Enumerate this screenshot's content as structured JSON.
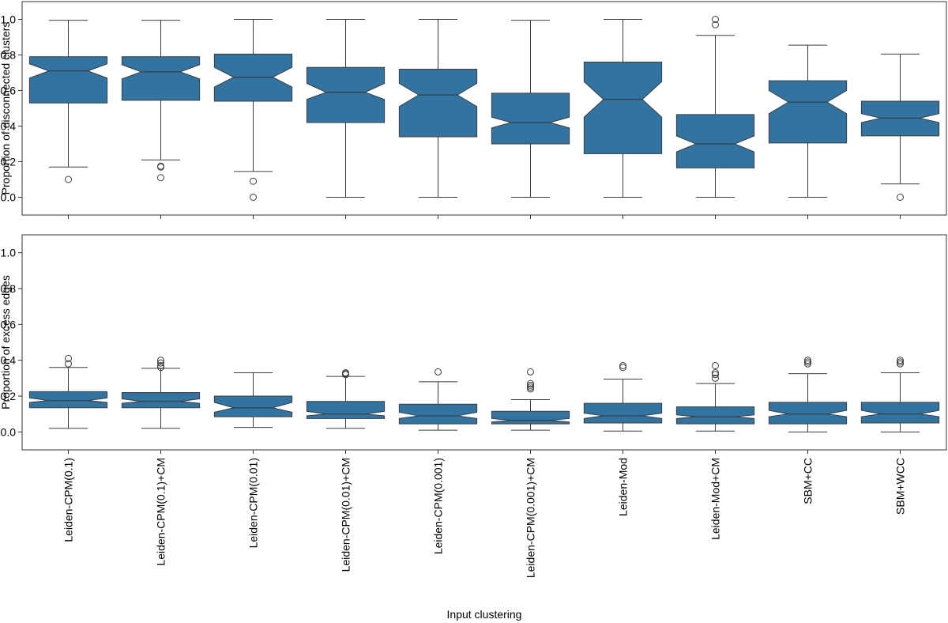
{
  "chart_data": [
    {
      "type": "box",
      "y_label": "Proportion of disconnected clusters",
      "color": "#3274a1",
      "ylim": [
        -0.1,
        1.1
      ],
      "yticks": [
        {
          "value": 0,
          "label": "0.0"
        },
        0.2,
        0.4,
        0.6,
        0.8,
        {
          "value": 1,
          "label": "1.0"
        }
      ],
      "boxes": [
        {
          "min": 0.17,
          "q1": 0.53,
          "median": 0.71,
          "q3": 0.79,
          "max": 0.995,
          "notch": [
            0.67,
            0.75
          ],
          "outliers": [
            0.1
          ]
        },
        {
          "min": 0.21,
          "q1": 0.545,
          "median": 0.705,
          "q3": 0.79,
          "max": 0.995,
          "notch": [
            0.665,
            0.745
          ],
          "outliers": [
            0.17,
            0.175,
            0.11
          ]
        },
        {
          "min": 0.145,
          "q1": 0.54,
          "median": 0.675,
          "q3": 0.805,
          "max": 1.0,
          "notch": [
            0.62,
            0.73
          ],
          "outliers": [
            0.09,
            0.0
          ]
        },
        {
          "min": 0.0,
          "q1": 0.42,
          "median": 0.59,
          "q3": 0.73,
          "max": 1.0,
          "notch": [
            0.55,
            0.64
          ],
          "outliers": []
        },
        {
          "min": 0.0,
          "q1": 0.34,
          "median": 0.575,
          "q3": 0.72,
          "max": 1.0,
          "notch": [
            0.51,
            0.64
          ],
          "outliers": []
        },
        {
          "min": 0.0,
          "q1": 0.3,
          "median": 0.42,
          "q3": 0.585,
          "max": 0.995,
          "notch": [
            0.39,
            0.45
          ],
          "outliers": []
        },
        {
          "min": 0.0,
          "q1": 0.245,
          "median": 0.55,
          "q3": 0.76,
          "max": 1.0,
          "notch": [
            0.45,
            0.65
          ],
          "outliers": []
        },
        {
          "min": 0.0,
          "q1": 0.165,
          "median": 0.3,
          "q3": 0.465,
          "max": 0.91,
          "notch": [
            0.255,
            0.345
          ],
          "outliers": [
            0.97,
            1.0
          ]
        },
        {
          "min": 0.0,
          "q1": 0.305,
          "median": 0.535,
          "q3": 0.655,
          "max": 0.855,
          "notch": [
            0.47,
            0.6
          ],
          "outliers": []
        },
        {
          "min": 0.075,
          "q1": 0.345,
          "median": 0.445,
          "q3": 0.54,
          "max": 0.805,
          "notch": [
            0.42,
            0.47
          ],
          "outliers": [
            0.0
          ]
        }
      ]
    },
    {
      "type": "box",
      "y_label": "Proportion of excess edges",
      "x_label": "Input clustering",
      "color": "#3274a1",
      "ylim": [
        -0.1,
        1.1
      ],
      "yticks": [
        {
          "value": 0,
          "label": "0.0"
        },
        0.2,
        0.4,
        0.6,
        0.8,
        {
          "value": 1,
          "label": "1.0"
        }
      ],
      "categories": [
        "Leiden-CPM(0.1)",
        "Leiden-CPM(0.1)+CM",
        "Leiden-CPM(0.01)",
        "Leiden-CPM(0.01)+CM",
        "Leiden-CPM(0.001)",
        "Leiden-CPM(0.001)+CM",
        "Leiden-Mod",
        "Leiden-Mod+CM",
        "SBM+CC",
        "SBM+WCC"
      ],
      "boxes": [
        {
          "min": 0.02,
          "q1": 0.135,
          "median": 0.175,
          "q3": 0.225,
          "max": 0.36,
          "notch": [
            0.165,
            0.19
          ],
          "outliers": [
            0.38,
            0.41
          ]
        },
        {
          "min": 0.02,
          "q1": 0.135,
          "median": 0.17,
          "q3": 0.22,
          "max": 0.355,
          "notch": [
            0.16,
            0.185
          ],
          "outliers": [
            0.36,
            0.37,
            0.385,
            0.4
          ]
        },
        {
          "min": 0.025,
          "q1": 0.085,
          "median": 0.135,
          "q3": 0.2,
          "max": 0.33,
          "notch": [
            0.11,
            0.165
          ],
          "outliers": []
        },
        {
          "min": 0.02,
          "q1": 0.075,
          "median": 0.1,
          "q3": 0.17,
          "max": 0.31,
          "notch": [
            0.09,
            0.115
          ],
          "outliers": [
            0.32,
            0.325,
            0.33
          ]
        },
        {
          "min": 0.01,
          "q1": 0.045,
          "median": 0.09,
          "q3": 0.155,
          "max": 0.28,
          "notch": [
            0.075,
            0.11
          ],
          "outliers": [
            0.335
          ]
        },
        {
          "min": 0.01,
          "q1": 0.045,
          "median": 0.065,
          "q3": 0.115,
          "max": 0.18,
          "notch": [
            0.055,
            0.075
          ],
          "outliers": [
            0.24,
            0.25,
            0.26,
            0.27,
            0.335
          ]
        },
        {
          "min": 0.005,
          "q1": 0.05,
          "median": 0.09,
          "q3": 0.16,
          "max": 0.295,
          "notch": [
            0.075,
            0.105
          ],
          "outliers": [
            0.36,
            0.37
          ]
        },
        {
          "min": 0.005,
          "q1": 0.045,
          "median": 0.085,
          "q3": 0.14,
          "max": 0.27,
          "notch": [
            0.075,
            0.095
          ],
          "outliers": [
            0.3,
            0.32,
            0.33,
            0.37
          ]
        },
        {
          "min": 0.0,
          "q1": 0.045,
          "median": 0.1,
          "q3": 0.165,
          "max": 0.325,
          "notch": [
            0.085,
            0.12
          ],
          "outliers": [
            0.38,
            0.39,
            0.4
          ]
        },
        {
          "min": 0.0,
          "q1": 0.05,
          "median": 0.1,
          "q3": 0.165,
          "max": 0.33,
          "notch": [
            0.085,
            0.12
          ],
          "outliers": [
            0.38,
            0.39,
            0.4
          ]
        }
      ]
    }
  ]
}
